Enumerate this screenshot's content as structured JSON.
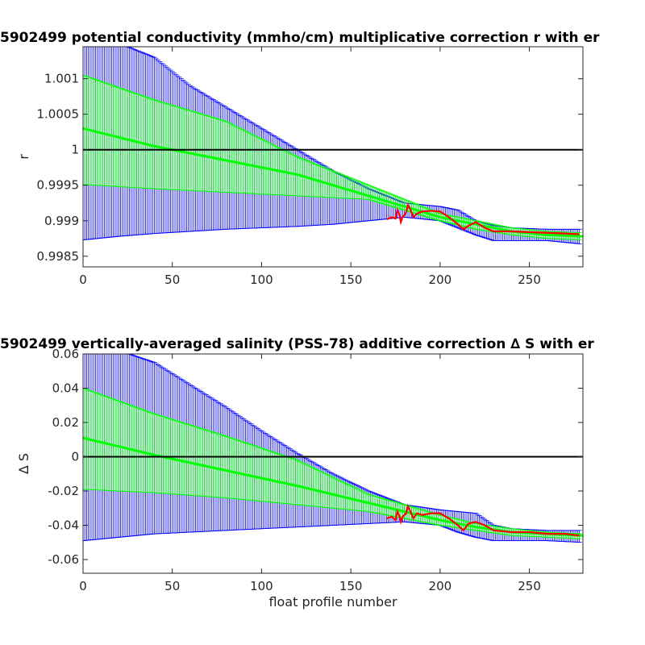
{
  "chart_data": [
    {
      "type": "line",
      "title": "5902499 potential conductivity (mmho/cm) multiplicative correction r with er",
      "xlabel": "",
      "ylabel": "r",
      "xlim": [
        0,
        280
      ],
      "ylim": [
        0.99835,
        1.00145
      ],
      "xticks": [
        "0",
        "50",
        "100",
        "150",
        "200",
        "250"
      ],
      "xtick_values": [
        0,
        50,
        100,
        150,
        200,
        250
      ],
      "yticks": [
        "0.9985",
        "0.999",
        "0.9995",
        "1",
        "1.0005",
        "1.001"
      ],
      "ytick_values": [
        0.9985,
        0.999,
        0.9995,
        1.0,
        1.0005,
        1.001
      ],
      "reference_line": 1,
      "colors": {
        "outer_error": "#0000ff",
        "inner_error": "#00ff00",
        "fit": "#00ff00",
        "correction": "#ff0000",
        "reference": "#000000"
      },
      "series": [
        {
          "role": "fit",
          "x": [
            0,
            40,
            80,
            120,
            160,
            180,
            200,
            220,
            240,
            260,
            280
          ],
          "values": [
            1.0003,
            1.00005,
            0.99985,
            0.99965,
            0.99935,
            0.9992,
            0.99905,
            0.99895,
            0.99885,
            0.9988,
            0.99878
          ]
        },
        {
          "role": "inner_upper",
          "x": [
            0,
            40,
            80,
            120,
            160,
            180,
            200,
            220,
            240,
            260,
            280
          ],
          "values": [
            1.00105,
            1.0007,
            1.0004,
            0.9999,
            0.9995,
            0.9993,
            0.9991,
            0.999,
            0.9989,
            0.99885,
            0.99883
          ]
        },
        {
          "role": "inner_lower",
          "x": [
            0,
            40,
            80,
            120,
            160,
            180,
            200,
            220,
            240,
            260,
            280
          ],
          "values": [
            0.99951,
            0.99945,
            0.9994,
            0.99935,
            0.9993,
            0.99915,
            0.999,
            0.99888,
            0.9988,
            0.99875,
            0.99873
          ]
        },
        {
          "role": "outer_upper",
          "x": [
            0,
            20,
            40,
            60,
            80,
            100,
            120,
            140,
            160,
            180,
            200,
            210,
            220,
            230,
            240,
            260,
            280
          ],
          "values": [
            1.0015,
            1.0015,
            1.0013,
            1.0009,
            1.0006,
            1.0003,
            1.0,
            0.9997,
            0.99945,
            0.99925,
            0.9992,
            0.99915,
            0.999,
            0.99893,
            0.9989,
            0.99888,
            0.99888
          ]
        },
        {
          "role": "outer_lower",
          "x": [
            0,
            20,
            40,
            60,
            80,
            100,
            120,
            140,
            160,
            180,
            200,
            210,
            220,
            230,
            240,
            260,
            280
          ],
          "values": [
            0.99873,
            0.99878,
            0.99882,
            0.99885,
            0.99888,
            0.9989,
            0.99892,
            0.99895,
            0.999,
            0.99905,
            0.999,
            0.9989,
            0.9988,
            0.99872,
            0.99872,
            0.99872,
            0.99867
          ]
        },
        {
          "role": "correction",
          "x": [
            170,
            173,
            175,
            176,
            177,
            178,
            179,
            180,
            181,
            182,
            183,
            185,
            187,
            190,
            195,
            200,
            205,
            210,
            213,
            216,
            220,
            225,
            230,
            240,
            250,
            260,
            270,
            278
          ],
          "values": [
            0.99902,
            0.99905,
            0.99903,
            0.99915,
            0.9991,
            0.99898,
            0.99905,
            0.99908,
            0.99912,
            0.99922,
            0.99918,
            0.99905,
            0.9991,
            0.99913,
            0.99914,
            0.99913,
            0.99905,
            0.99895,
            0.99888,
            0.99893,
            0.99898,
            0.9989,
            0.99885,
            0.99885,
            0.99884,
            0.99883,
            0.99882,
            0.99881
          ]
        }
      ]
    },
    {
      "type": "line",
      "title": "5902499 vertically-averaged salinity (PSS-78) additive correction ∆ S with er",
      "xlabel": "float profile number",
      "ylabel": "∆ S",
      "xlim": [
        0,
        280
      ],
      "ylim": [
        -0.068,
        0.06
      ],
      "xticks": [
        "0",
        "50",
        "100",
        "150",
        "200",
        "250"
      ],
      "xtick_values": [
        0,
        50,
        100,
        150,
        200,
        250
      ],
      "yticks": [
        "-0.06",
        "-0.04",
        "-0.02",
        "0",
        "0.02",
        "0.04",
        "0.06"
      ],
      "ytick_values": [
        -0.06,
        -0.04,
        -0.02,
        0,
        0.02,
        0.04,
        0.06
      ],
      "reference_line": 0,
      "colors": {
        "outer_error": "#0000ff",
        "inner_error": "#00ff00",
        "fit": "#00ff00",
        "correction": "#ff0000",
        "reference": "#000000"
      },
      "series": [
        {
          "role": "fit",
          "x": [
            0,
            40,
            80,
            120,
            160,
            180,
            200,
            220,
            240,
            260,
            280
          ],
          "values": [
            0.011,
            0.001,
            -0.008,
            -0.017,
            -0.027,
            -0.032,
            -0.037,
            -0.041,
            -0.044,
            -0.045,
            -0.046
          ]
        },
        {
          "role": "inner_upper",
          "x": [
            0,
            40,
            80,
            120,
            160,
            180,
            200,
            220,
            240,
            260,
            280
          ],
          "values": [
            0.04,
            0.025,
            0.012,
            -0.002,
            -0.022,
            -0.028,
            -0.034,
            -0.039,
            -0.042,
            -0.044,
            -0.045
          ]
        },
        {
          "role": "inner_lower",
          "x": [
            0,
            40,
            80,
            120,
            160,
            180,
            200,
            220,
            240,
            260,
            280
          ],
          "values": [
            -0.019,
            -0.021,
            -0.024,
            -0.028,
            -0.032,
            -0.036,
            -0.04,
            -0.043,
            -0.046,
            -0.047,
            -0.048
          ]
        },
        {
          "role": "outer_upper",
          "x": [
            0,
            20,
            40,
            60,
            80,
            100,
            120,
            140,
            160,
            180,
            200,
            210,
            220,
            230,
            240,
            260,
            280
          ],
          "values": [
            0.062,
            0.062,
            0.055,
            0.042,
            0.029,
            0.015,
            0.002,
            -0.01,
            -0.02,
            -0.028,
            -0.031,
            -0.032,
            -0.033,
            -0.04,
            -0.042,
            -0.043,
            -0.043
          ]
        },
        {
          "role": "outer_lower",
          "x": [
            0,
            20,
            40,
            60,
            80,
            100,
            120,
            140,
            160,
            180,
            200,
            210,
            220,
            230,
            240,
            260,
            280
          ],
          "values": [
            -0.049,
            -0.047,
            -0.045,
            -0.044,
            -0.043,
            -0.042,
            -0.041,
            -0.04,
            -0.039,
            -0.038,
            -0.04,
            -0.044,
            -0.047,
            -0.049,
            -0.049,
            -0.049,
            -0.05
          ]
        },
        {
          "role": "correction",
          "x": [
            170,
            173,
            175,
            176,
            177,
            178,
            179,
            180,
            181,
            182,
            183,
            185,
            187,
            190,
            195,
            200,
            205,
            210,
            213,
            216,
            220,
            225,
            230,
            240,
            250,
            260,
            270,
            278
          ],
          "values": [
            -0.036,
            -0.035,
            -0.037,
            -0.032,
            -0.034,
            -0.038,
            -0.035,
            -0.034,
            -0.033,
            -0.029,
            -0.031,
            -0.036,
            -0.033,
            -0.034,
            -0.033,
            -0.033,
            -0.036,
            -0.04,
            -0.043,
            -0.039,
            -0.038,
            -0.04,
            -0.043,
            -0.044,
            -0.044,
            -0.045,
            -0.045,
            -0.046
          ]
        }
      ]
    }
  ]
}
